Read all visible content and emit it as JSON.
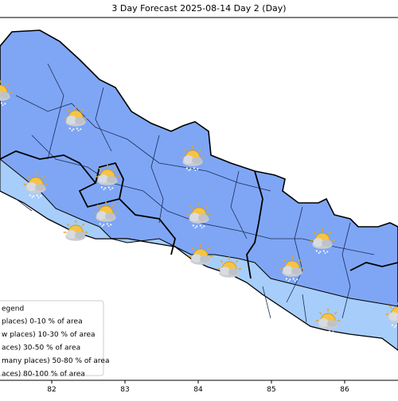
{
  "title": "3 Day Forecast 2025-08-14 Day 2 (Day)",
  "x_ticks": [
    82,
    83,
    84,
    85,
    86
  ],
  "legend": {
    "title": "egend",
    "items": [
      "places)  0-10 % of area",
      "w places) 10-30 % of area",
      "aces) 30-50  % of area",
      "many places) 50-80 % of area",
      "aces) 80-100 % of area"
    ]
  }
}
